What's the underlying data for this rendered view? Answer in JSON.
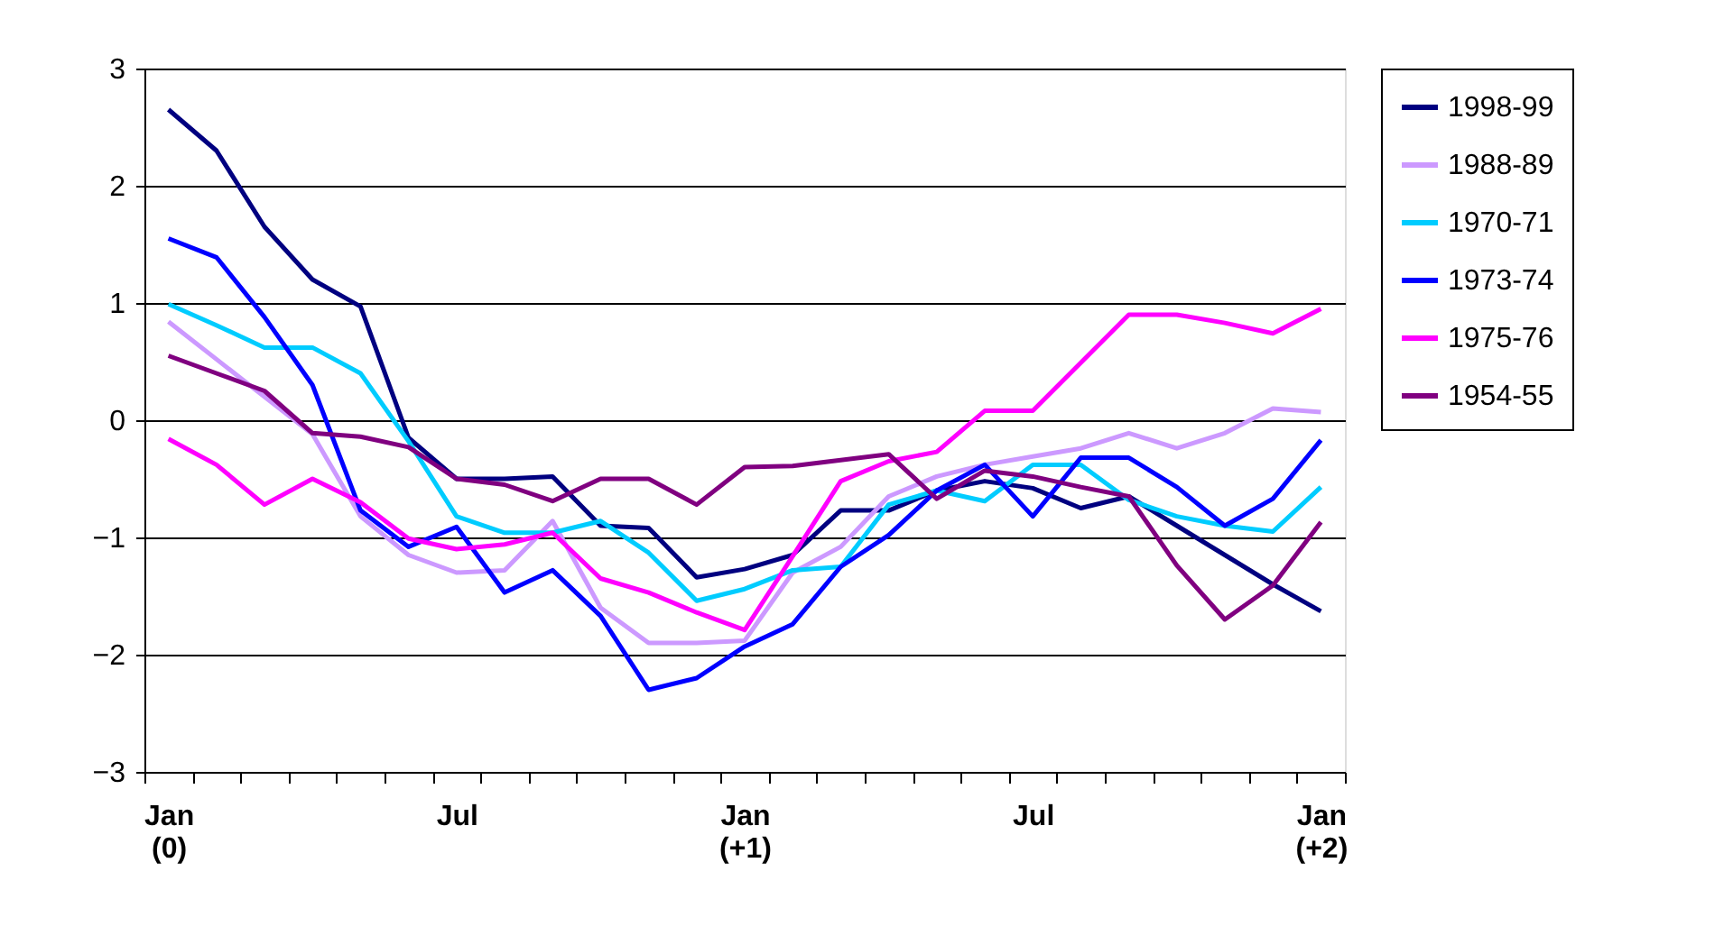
{
  "chart_data": {
    "type": "line",
    "categories": [
      "Jan\n(0)",
      null,
      null,
      null,
      null,
      null,
      "Jul",
      null,
      null,
      null,
      null,
      null,
      "Jan\n(+1)",
      null,
      null,
      null,
      null,
      null,
      "Jul",
      null,
      null,
      null,
      null,
      null,
      "Jan\n(+2)"
    ],
    "ylim": [
      -3,
      3
    ],
    "yticks": [
      -3,
      -2,
      -1,
      0,
      1,
      2,
      3
    ],
    "grid": "y",
    "legend": "right",
    "marker": "none",
    "line_style": "solid",
    "series": [
      {
        "name": "1998-99",
        "color": "#000080",
        "values": [
          2.65,
          2.3,
          1.65,
          1.2,
          0.97,
          -0.15,
          -0.5,
          -0.5,
          -0.48,
          -0.9,
          -0.92,
          -1.34,
          -1.27,
          -1.15,
          -0.77,
          -0.77,
          -0.6,
          -0.52,
          -0.58,
          -0.75,
          -0.65,
          -0.9,
          -1.15,
          -1.4,
          -1.63
        ]
      },
      {
        "name": "1988-89",
        "color": "#cc99ff",
        "values": [
          0.84,
          0.52,
          0.2,
          -0.12,
          -0.82,
          -1.15,
          -1.3,
          -1.28,
          -0.86,
          -1.6,
          -1.9,
          -1.9,
          -1.88,
          -1.3,
          -1.08,
          -0.65,
          -0.48,
          -0.38,
          -0.31,
          -0.24,
          -0.11,
          -0.24,
          -0.11,
          0.1,
          0.07
        ]
      },
      {
        "name": "1970-71",
        "color": "#00ccff",
        "values": [
          0.99,
          0.81,
          0.62,
          0.62,
          0.4,
          -0.18,
          -0.82,
          -0.96,
          -0.96,
          -0.86,
          -1.13,
          -1.54,
          -1.44,
          -1.28,
          -1.25,
          -0.72,
          -0.6,
          -0.69,
          -0.38,
          -0.38,
          -0.68,
          -0.82,
          -0.9,
          -0.95,
          -0.57
        ]
      },
      {
        "name": "1973-74",
        "color": "#0000ff",
        "values": [
          1.55,
          1.39,
          0.88,
          0.3,
          -0.77,
          -1.08,
          -0.91,
          -1.47,
          -1.28,
          -1.67,
          -2.3,
          -2.2,
          -1.93,
          -1.74,
          -1.25,
          -0.98,
          -0.6,
          -0.38,
          -0.82,
          -0.32,
          -0.32,
          -0.57,
          -0.9,
          -0.67,
          -0.17
        ]
      },
      {
        "name": "1975-76",
        "color": "#ff00ff",
        "values": [
          -0.16,
          -0.38,
          -0.72,
          -0.5,
          -0.7,
          -1.01,
          -1.1,
          -1.06,
          -0.96,
          -1.35,
          -1.47,
          -1.64,
          -1.79,
          -1.16,
          -0.52,
          -0.35,
          -0.27,
          0.08,
          0.08,
          0.49,
          0.9,
          0.9,
          0.83,
          0.74,
          0.95
        ]
      },
      {
        "name": "1954-55",
        "color": "#800080",
        "values": [
          0.55,
          0.4,
          0.25,
          -0.11,
          -0.14,
          -0.23,
          -0.5,
          -0.55,
          -0.69,
          -0.5,
          -0.5,
          -0.72,
          -0.4,
          -0.39,
          -0.34,
          -0.29,
          -0.67,
          -0.43,
          -0.48,
          -0.57,
          -0.65,
          -1.24,
          -1.7,
          -1.41,
          -0.87
        ]
      }
    ]
  }
}
